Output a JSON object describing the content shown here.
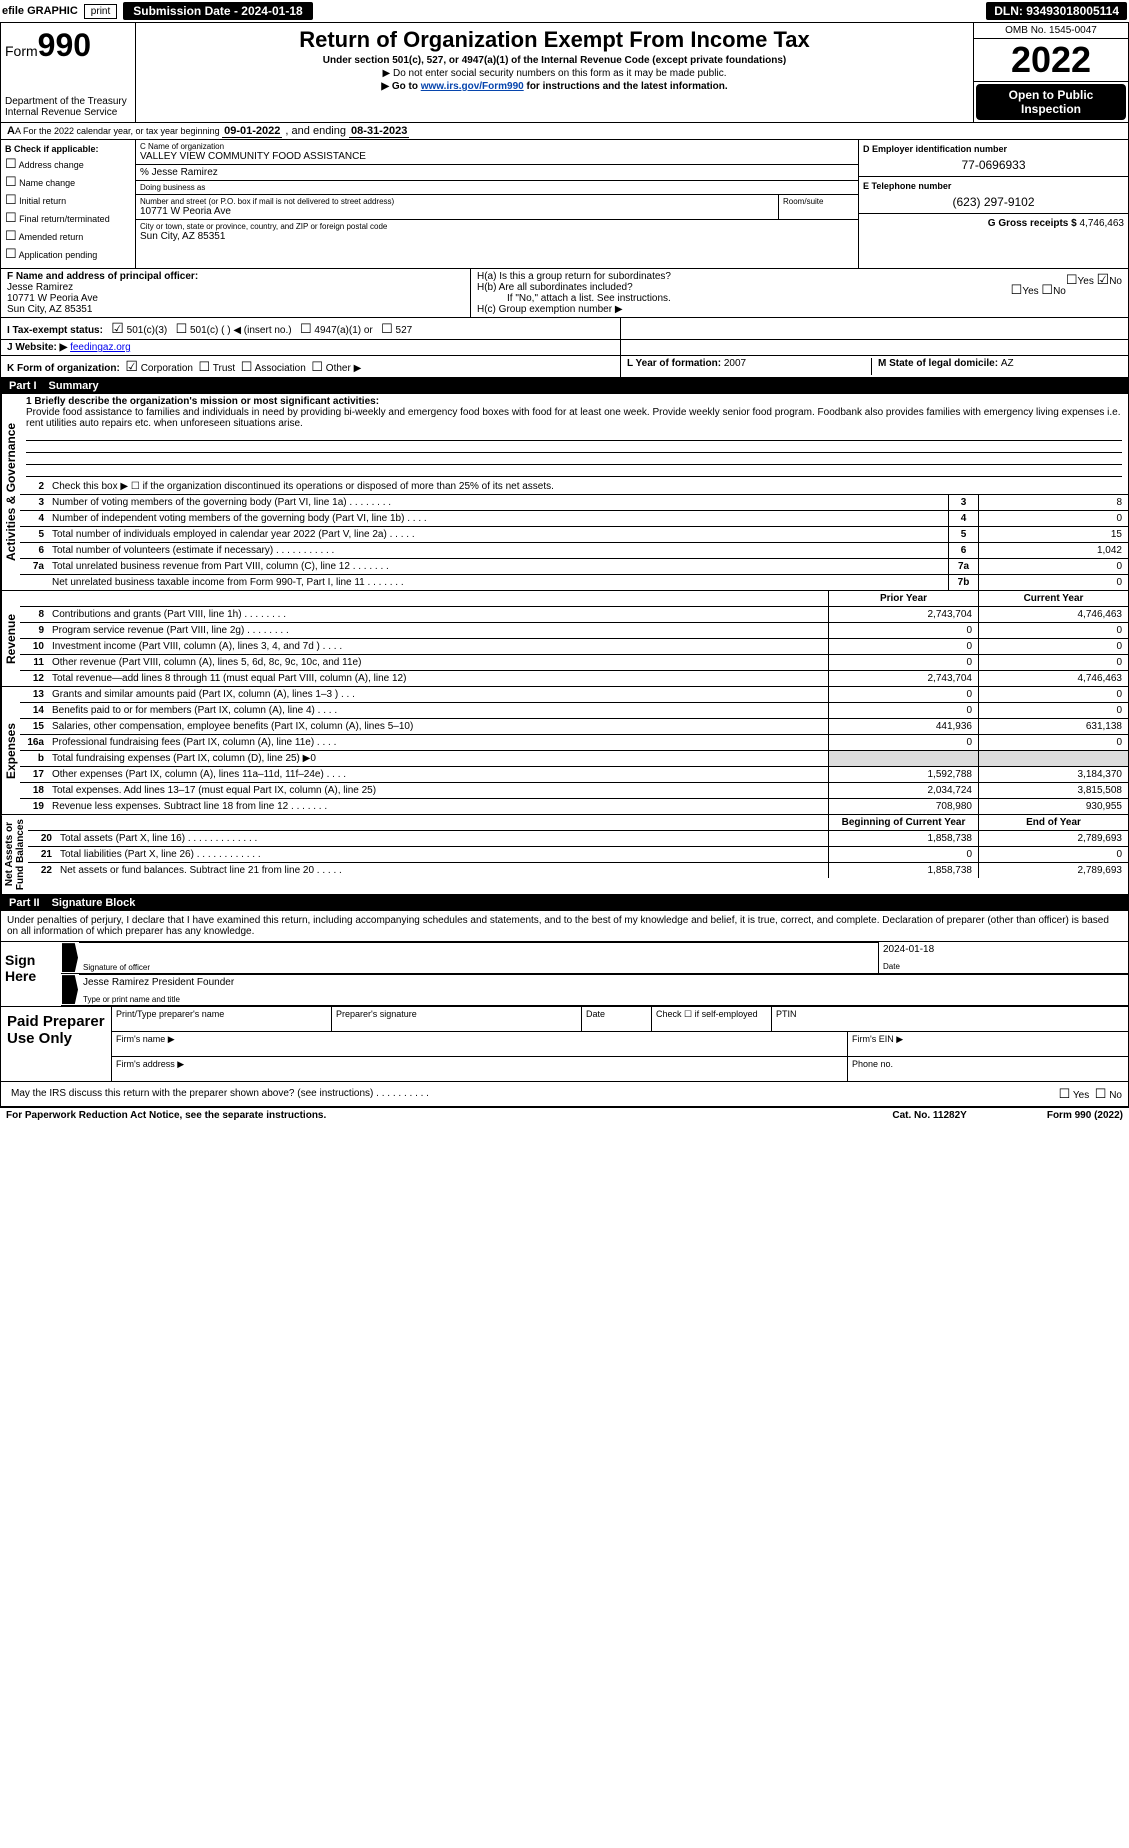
{
  "topbar": {
    "efile": "efile GRAPHIC",
    "print": "print",
    "subdate_label": "Submission Date - ",
    "subdate": "2024-01-18",
    "dln_label": "DLN: ",
    "dln": "93493018005114"
  },
  "hdr": {
    "form_prefix": "Form",
    "form_num": "990",
    "title": "Return of Organization Exempt From Income Tax",
    "subtitle": "Under section 501(c), 527, or 4947(a)(1) of the Internal Revenue Code (except private foundations)",
    "note1": "▶ Do not enter social security numbers on this form as it may be made public.",
    "note2_pre": "▶ Go to ",
    "note2_link": "www.irs.gov/Form990",
    "note2_post": " for instructions and the latest information.",
    "dept": "Department of the Treasury\nInternal Revenue Service",
    "omb": "OMB No. 1545-0047",
    "year": "2022",
    "open": "Open to Public Inspection"
  },
  "period": {
    "text_a": "A For the 2022 calendar year, or tax year beginning ",
    "begin": "09-01-2022",
    "text_b": " , and ending ",
    "end": "08-31-2023"
  },
  "checkB": {
    "label": "B Check if applicable:",
    "items": [
      "Address change",
      "Name change",
      "Initial return",
      "Final return/terminated",
      "Amended return",
      "Application pending"
    ]
  },
  "org": {
    "name_label": "C Name of organization",
    "name": "VALLEY VIEW COMMUNITY FOOD ASSISTANCE",
    "care_of": "% Jesse Ramirez",
    "dba_label": "Doing business as",
    "dba": "",
    "addr_label": "Number and street (or P.O. box if mail is not delivered to street address)",
    "room_label": "Room/suite",
    "addr": "10771 W Peoria Ave",
    "city_label": "City or town, state or province, country, and ZIP or foreign postal code",
    "city": "Sun City, AZ  85351",
    "ein_label": "D Employer identification number",
    "ein": "77-0696933",
    "tel_label": "E Telephone number",
    "tel": "(623) 297-9102",
    "gross_label": "G Gross receipts $ ",
    "gross": "4,746,463"
  },
  "officer": {
    "label": "F Name and address of principal officer:",
    "name": "Jesse Ramirez",
    "addr1": "10771 W Peoria Ave",
    "addr2": "Sun City, AZ  85351"
  },
  "H": {
    "a": "H(a)  Is this a group return for subordinates?",
    "a_yes": "Yes",
    "a_no": "No",
    "b": "H(b)  Are all subordinates included?",
    "b_yes": "Yes",
    "b_no": "No",
    "b_note": "If \"No,\" attach a list. See instructions.",
    "c": "H(c)  Group exemption number ▶"
  },
  "I": {
    "label": "I  Tax-exempt status:",
    "o1": "501(c)(3)",
    "o2": "501(c) (   ) ◀ (insert no.)",
    "o3": "4947(a)(1) or",
    "o4": "527"
  },
  "J": {
    "label": "J  Website: ▶ ",
    "val": "feedingaz.org"
  },
  "K": {
    "label": "K Form of organization:",
    "o1": "Corporation",
    "o2": "Trust",
    "o3": "Association",
    "o4": "Other ▶"
  },
  "L": {
    "label": "L Year of formation: ",
    "val": "2007"
  },
  "M": {
    "label": "M State of legal domicile: ",
    "val": "AZ"
  },
  "parts": {
    "p1": "Part I",
    "p1t": "Summary",
    "p2": "Part II",
    "p2t": "Signature Block"
  },
  "summary": {
    "q1": "1  Briefly describe the organization's mission or most significant activities:",
    "mission": "Provide food assistance to families and individuals in need by providing bi-weekly and emergency food boxes with food for at least one week. Provide weekly senior food program. Foodbank also provides families with emergency living expenses i.e. rent utilities auto repairs etc. when unforeseen situations arise.",
    "q2": "Check this box ▶ ☐  if the organization discontinued its operations or disposed of more than 25% of its net assets.",
    "lines_ag": [
      {
        "n": "3",
        "t": "Number of voting members of the governing body (Part VI, line 1a)  .   .   .   .   .   .   .   .",
        "box": "3",
        "v": "8"
      },
      {
        "n": "4",
        "t": "Number of independent voting members of the governing body (Part VI, line 1b)   .   .   .   .",
        "box": "4",
        "v": "0"
      },
      {
        "n": "5",
        "t": "Total number of individuals employed in calendar year 2022 (Part V, line 2a)  .   .   .   .   .",
        "box": "5",
        "v": "15"
      },
      {
        "n": "6",
        "t": "Total number of volunteers (estimate if necessary)    .    .    .    .    .    .    .    .    .    .    .",
        "box": "6",
        "v": "1,042"
      },
      {
        "n": "7a",
        "t": "Total unrelated business revenue from Part VIII, column (C), line 12   .   .   .   .   .   .   .",
        "box": "7a",
        "v": "0"
      },
      {
        "n": "",
        "t": "Net unrelated business taxable income from Form 990-T, Part I, line 11   .   .   .   .   .   .   .",
        "box": "7b",
        "v": "0"
      }
    ],
    "col_prior": "Prior Year",
    "col_current": "Current Year",
    "revenue": [
      {
        "n": "8",
        "t": "Contributions and grants (Part VIII, line 1h)   .   .   .   .   .   .   .   .",
        "p": "2,743,704",
        "c": "4,746,463"
      },
      {
        "n": "9",
        "t": "Program service revenue (Part VIII, line 2g)   .   .   .   .   .   .   .   .",
        "p": "0",
        "c": "0"
      },
      {
        "n": "10",
        "t": "Investment income (Part VIII, column (A), lines 3, 4, and 7d )  .   .   .   .",
        "p": "0",
        "c": "0"
      },
      {
        "n": "11",
        "t": "Other revenue (Part VIII, column (A), lines 5, 6d, 8c, 9c, 10c, and 11e)",
        "p": "0",
        "c": "0"
      },
      {
        "n": "12",
        "t": "Total revenue—add lines 8 through 11 (must equal Part VIII, column (A), line 12)",
        "p": "2,743,704",
        "c": "4,746,463"
      }
    ],
    "expenses": [
      {
        "n": "13",
        "t": "Grants and similar amounts paid (Part IX, column (A), lines 1–3 )  .   .   .",
        "p": "0",
        "c": "0"
      },
      {
        "n": "14",
        "t": "Benefits paid to or for members (Part IX, column (A), line 4)  .   .   .   .",
        "p": "0",
        "c": "0"
      },
      {
        "n": "15",
        "t": "Salaries, other compensation, employee benefits (Part IX, column (A), lines 5–10)",
        "p": "441,936",
        "c": "631,138"
      },
      {
        "n": "16a",
        "t": "Professional fundraising fees (Part IX, column (A), line 11e)  .   .   .   .",
        "p": "0",
        "c": "0"
      },
      {
        "n": "b",
        "t": "Total fundraising expenses (Part IX, column (D), line 25) ▶0",
        "p": "",
        "c": "",
        "shade": true
      },
      {
        "n": "17",
        "t": "Other expenses (Part IX, column (A), lines 11a–11d, 11f–24e)   .   .   .   .",
        "p": "1,592,788",
        "c": "3,184,370"
      },
      {
        "n": "18",
        "t": "Total expenses. Add lines 13–17 (must equal Part IX, column (A), line 25)",
        "p": "2,034,724",
        "c": "3,815,508"
      },
      {
        "n": "19",
        "t": "Revenue less expenses. Subtract line 18 from line 12  .   .   .   .   .   .   .",
        "p": "708,980",
        "c": "930,955"
      }
    ],
    "col_begin": "Beginning of Current Year",
    "col_end": "End of Year",
    "netassets": [
      {
        "n": "20",
        "t": "Total assets (Part X, line 16)  .   .   .   .   .   .   .   .   .   .   .   .   .",
        "p": "1,858,738",
        "c": "2,789,693"
      },
      {
        "n": "21",
        "t": "Total liabilities (Part X, line 26)   .   .   .   .   .   .   .   .   .   .   .   .",
        "p": "0",
        "c": "0"
      },
      {
        "n": "22",
        "t": "Net assets or fund balances. Subtract line 21 from line 20   .   .   .   .   .",
        "p": "1,858,738",
        "c": "2,789,693"
      }
    ]
  },
  "sidelabels": {
    "ag": "Activities & Governance",
    "rev": "Revenue",
    "exp": "Expenses",
    "na": "Net Assets or\nFund Balances"
  },
  "sigblock": {
    "decl": "Under penalties of perjury, I declare that I have examined this return, including accompanying schedules and statements, and to the best of my knowledge and belief, it is true, correct, and complete. Declaration of preparer (other than officer) is based on all information of which preparer has any knowledge.",
    "sign_here": "Sign Here",
    "sig_of_officer": "Signature of officer",
    "date": "Date",
    "date_val": "2024-01-18",
    "name_title": "Jesse Ramirez  President Founder",
    "name_title_lbl": "Type or print name and title",
    "paid": "Paid Preparer Use Only",
    "prep_name": "Print/Type preparer's name",
    "prep_sig": "Preparer's signature",
    "prep_date": "Date",
    "prep_check": "Check ☐ if self-employed",
    "ptin": "PTIN",
    "firm_name": "Firm's name   ▶",
    "firm_ein": "Firm's EIN ▶",
    "firm_addr": "Firm's address ▶",
    "phone": "Phone no.",
    "may_irs": "May the IRS discuss this return with the preparer shown above? (see instructions)   .    .    .    .    .    .    .    .    .    .",
    "yes": "Yes",
    "no": "No"
  },
  "footer": {
    "left": "For Paperwork Reduction Act Notice, see the separate instructions.",
    "mid": "Cat. No. 11282Y",
    "right": "Form 990 (2022)"
  }
}
